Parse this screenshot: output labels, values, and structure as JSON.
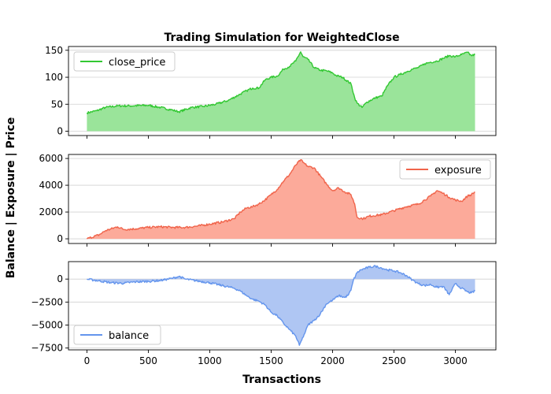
{
  "chart_data": {
    "type": "area",
    "title": "Trading Simulation for WeightedClose",
    "xlabel": "Transactions",
    "ylabel": "Balance | Exposure | Price",
    "xlim": [
      -150,
      3330
    ],
    "xticks": [
      0,
      500,
      1000,
      1500,
      2000,
      2500,
      3000
    ],
    "xtick_labels": [
      "0",
      "500",
      "1000",
      "1500",
      "2000",
      "2500",
      "3000"
    ],
    "grid": "y",
    "panels": [
      {
        "series_name": "close_price",
        "line_color": "#32c832",
        "fill_color": "#9ae49a",
        "legend_position": "upper-left",
        "ylim": [
          -8,
          157
        ],
        "yticks": [
          0,
          50,
          100,
          150
        ],
        "ytick_labels": [
          "0",
          "50",
          "100",
          "150"
        ],
        "x": [
          0,
          80,
          150,
          250,
          350,
          500,
          600,
          700,
          750,
          850,
          950,
          1050,
          1150,
          1250,
          1300,
          1350,
          1400,
          1450,
          1500,
          1550,
          1600,
          1650,
          1700,
          1740,
          1760,
          1800,
          1850,
          1900,
          1950,
          2000,
          2030,
          2080,
          2150,
          2180,
          2200,
          2240,
          2280,
          2350,
          2400,
          2450,
          2500,
          2550,
          2600,
          2650,
          2700,
          2750,
          2800,
          2850,
          2900,
          2950,
          3000,
          3050,
          3100,
          3130,
          3160
        ],
        "y": [
          34,
          38,
          44,
          47,
          47,
          48,
          44,
          39,
          36,
          44,
          46,
          50,
          57,
          69,
          75,
          80,
          80,
          95,
          100,
          102,
          115,
          120,
          130,
          147,
          138,
          133,
          118,
          113,
          112,
          108,
          103,
          100,
          88,
          62,
          52,
          44,
          54,
          62,
          65,
          85,
          100,
          105,
          110,
          115,
          118,
          125,
          128,
          130,
          135,
          140,
          138,
          142,
          146,
          140,
          142
        ]
      },
      {
        "series_name": "exposure",
        "line_color": "#f0644b",
        "fill_color": "#fcaa9a",
        "legend_position": "upper-right",
        "ylim": [
          -350,
          6300
        ],
        "yticks": [
          0,
          2000,
          4000,
          6000
        ],
        "ytick_labels": [
          "0",
          "2000",
          "4000",
          "6000"
        ],
        "x": [
          0,
          100,
          150,
          250,
          300,
          400,
          500,
          600,
          700,
          800,
          900,
          1000,
          1100,
          1200,
          1250,
          1300,
          1350,
          1400,
          1450,
          1500,
          1550,
          1600,
          1650,
          1700,
          1740,
          1760,
          1800,
          1850,
          1900,
          1950,
          2000,
          2050,
          2100,
          2150,
          2180,
          2200,
          2250,
          2300,
          2400,
          2500,
          2600,
          2700,
          2750,
          2800,
          2850,
          2900,
          2950,
          3000,
          3050,
          3100,
          3130,
          3160
        ],
        "y": [
          0,
          300,
          600,
          900,
          700,
          750,
          850,
          900,
          850,
          850,
          950,
          1100,
          1250,
          1500,
          2000,
          2300,
          2400,
          2600,
          2900,
          3300,
          3700,
          4300,
          4800,
          5500,
          5900,
          5700,
          5400,
          5300,
          4700,
          4100,
          3600,
          3800,
          3500,
          3300,
          2600,
          1600,
          1500,
          1700,
          1800,
          2100,
          2400,
          2600,
          2900,
          3200,
          3600,
          3400,
          3100,
          2900,
          2800,
          3200,
          3300,
          3500
        ]
      },
      {
        "series_name": "balance",
        "line_color": "#6495ed",
        "fill_color": "#afc6f3",
        "legend_position": "lower-left",
        "ylim": [
          -7700,
          1900
        ],
        "yticks": [
          0,
          -2500,
          -5000,
          -7500
        ],
        "ytick_labels": [
          "0",
          "−2500",
          "−5000",
          "−7500"
        ],
        "x": [
          0,
          100,
          200,
          300,
          400,
          500,
          600,
          700,
          750,
          800,
          900,
          1000,
          1100,
          1200,
          1250,
          1300,
          1350,
          1400,
          1450,
          1500,
          1550,
          1600,
          1650,
          1700,
          1730,
          1750,
          1780,
          1800,
          1850,
          1900,
          1950,
          2000,
          2050,
          2100,
          2130,
          2150,
          2170,
          2200,
          2230,
          2300,
          2350,
          2400,
          2450,
          2500,
          2550,
          2600,
          2650,
          2700,
          2750,
          2800,
          2850,
          2900,
          2950,
          3000,
          3050,
          3100,
          3130,
          3160
        ],
        "y": [
          0,
          -200,
          -400,
          -450,
          -300,
          -250,
          -150,
          100,
          300,
          0,
          -200,
          -400,
          -700,
          -1000,
          -1300,
          -1800,
          -2200,
          -2400,
          -2800,
          -3600,
          -4000,
          -4800,
          -5500,
          -6200,
          -7200,
          -6600,
          -5700,
          -5000,
          -4500,
          -3800,
          -2700,
          -2300,
          -1800,
          -2000,
          -1700,
          -1200,
          -100,
          700,
          1000,
          1300,
          1400,
          1200,
          1000,
          900,
          700,
          400,
          -100,
          -500,
          -700,
          -600,
          -900,
          -800,
          -1700,
          -500,
          -1000,
          -1400,
          -1500,
          -1300
        ]
      }
    ]
  }
}
